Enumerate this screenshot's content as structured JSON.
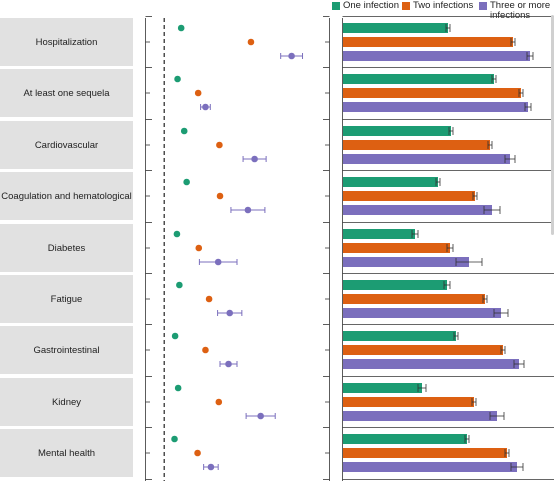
{
  "chart_data": {
    "type": "forest-and-bar",
    "colors": {
      "One infection": "#1c9c73",
      "Two infections": "#dd6012",
      "Three or more infections": "#7b6fbd"
    },
    "series": [
      {
        "name": "One infection"
      },
      {
        "name": "Two infections"
      },
      {
        "name": "Three or more infections"
      }
    ],
    "categories": [
      "Hospitalization",
      "At least one sequela",
      "Cardiovascular",
      "Coagulation and hematological",
      "Diabetes",
      "Fatigue",
      "Gastrointestinal",
      "Kidney",
      "Mental health"
    ],
    "forest": [
      {
        "values": [
          [
            0.28,
            0.26,
            0.3
          ],
          [
            1.43,
            1.4,
            1.46
          ],
          [
            2.1,
            1.92,
            2.28
          ]
        ]
      },
      {
        "values": [
          [
            0.22,
            0.2,
            0.24
          ],
          [
            0.56,
            0.53,
            0.59
          ],
          [
            0.68,
            0.6,
            0.76
          ]
        ]
      },
      {
        "values": [
          [
            0.33,
            0.31,
            0.35
          ],
          [
            0.91,
            0.88,
            0.94
          ],
          [
            1.49,
            1.3,
            1.68
          ]
        ]
      },
      {
        "values": [
          [
            0.37,
            0.35,
            0.39
          ],
          [
            0.92,
            0.88,
            0.96
          ],
          [
            1.38,
            1.1,
            1.66
          ]
        ]
      },
      {
        "values": [
          [
            0.21,
            0.19,
            0.23
          ],
          [
            0.57,
            0.53,
            0.61
          ],
          [
            0.89,
            0.58,
            1.2
          ]
        ]
      },
      {
        "values": [
          [
            0.25,
            0.23,
            0.27
          ],
          [
            0.74,
            0.71,
            0.77
          ],
          [
            1.08,
            0.88,
            1.28
          ]
        ]
      },
      {
        "values": [
          [
            0.18,
            0.16,
            0.2
          ],
          [
            0.68,
            0.65,
            0.71
          ],
          [
            1.06,
            0.92,
            1.2
          ]
        ]
      },
      {
        "values": [
          [
            0.23,
            0.21,
            0.25
          ],
          [
            0.9,
            0.87,
            0.93
          ],
          [
            1.59,
            1.35,
            1.83
          ]
        ]
      },
      {
        "values": [
          [
            0.17,
            0.15,
            0.19
          ],
          [
            0.55,
            0.52,
            0.58
          ],
          [
            0.77,
            0.65,
            0.89
          ]
        ]
      }
    ],
    "forest_xlim": [
      -0.3,
      2.7
    ],
    "forest_reference": 0,
    "bars": [
      {
        "values": [
          [
            105,
            2
          ],
          [
            170,
            2
          ],
          [
            187,
            3
          ]
        ]
      },
      {
        "values": [
          [
            151,
            2
          ],
          [
            178,
            2
          ],
          [
            185,
            3
          ]
        ]
      },
      {
        "values": [
          [
            108,
            2
          ],
          [
            147,
            2
          ],
          [
            167,
            5
          ]
        ]
      },
      {
        "values": [
          [
            95,
            2
          ],
          [
            132,
            2
          ],
          [
            149,
            8
          ]
        ]
      },
      {
        "values": [
          [
            72,
            3
          ],
          [
            107,
            3
          ],
          [
            126,
            13
          ]
        ]
      },
      {
        "values": [
          [
            104,
            3
          ],
          [
            142,
            2
          ],
          [
            158,
            7
          ]
        ]
      },
      {
        "values": [
          [
            113,
            2
          ],
          [
            160,
            2
          ],
          [
            176,
            5
          ]
        ]
      },
      {
        "values": [
          [
            79,
            4
          ],
          [
            131,
            2
          ],
          [
            154,
            7
          ]
        ]
      },
      {
        "values": [
          [
            124,
            2
          ],
          [
            164,
            2
          ],
          [
            174,
            6
          ]
        ]
      }
    ],
    "bar_xlim": [
      0,
      213
    ]
  }
}
